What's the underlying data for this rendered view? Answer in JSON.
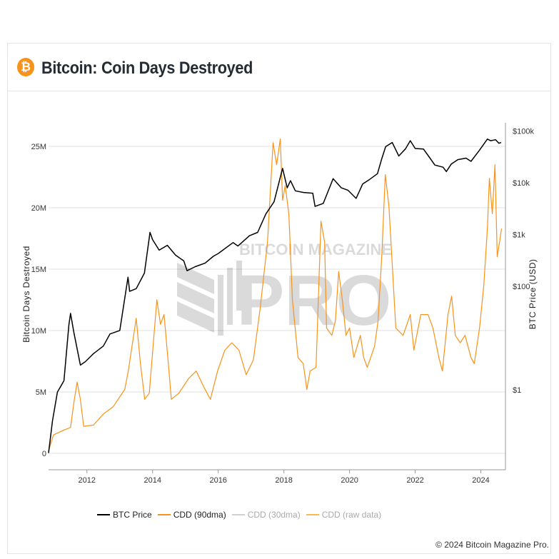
{
  "header": {
    "title": "Bitcoin: Coin Days Destroyed",
    "logo_icon": "bitcoin-logo-icon",
    "logo_glyph": "₿"
  },
  "watermark": {
    "line1": "BITCOIN MAGAZINE",
    "line2": "PRO"
  },
  "copyright": "© 2024 Bitcoin Magazine Pro.",
  "colors": {
    "btc": "#000000",
    "cdd90": "#f7931a",
    "cdd30": "#d0d0d0",
    "raw": "#ffb84d",
    "grid": "#e0e0e0"
  },
  "legend": [
    {
      "label": "BTC Price",
      "color": "#000000",
      "active": true
    },
    {
      "label": "CDD (90dma)",
      "color": "#f7931a",
      "active": true
    },
    {
      "label": "CDD (30dma)",
      "color": "#d0d0d0",
      "active": false
    },
    {
      "label": "CDD (raw data)",
      "color": "#ffb84d",
      "active": false
    }
  ],
  "chart_data": {
    "type": "line",
    "title": "",
    "ylabel": "Bitcoin Days Destroyed",
    "y2label": "BTC Price (USD)",
    "x_ticks": [
      "2012",
      "2014",
      "2016",
      "2018",
      "2020",
      "2022",
      "2024"
    ],
    "y_ticks": [
      "0",
      "5M",
      "10M",
      "15M",
      "20M",
      "25M"
    ],
    "y2_ticks": [
      "$1",
      "$100",
      "$1k",
      "$10k",
      "$100k"
    ],
    "y_scale": "linear",
    "y2_scale": "log",
    "xlim": [
      2010.83,
      2024.75
    ],
    "ylim_millions": [
      -1.34,
      26.45
    ],
    "y2lim": [
      0.0285,
      112000
    ],
    "grid": true,
    "legend_position": "bottom",
    "series": [
      {
        "name": "CDD (90dma)",
        "axis": "left",
        "unit": "M",
        "x": [
          2010.83,
          2010.98,
          2011.3,
          2011.5,
          2011.6,
          2011.7,
          2011.8,
          2011.9,
          2012.2,
          2012.5,
          2012.8,
          2013.15,
          2013.26,
          2013.5,
          2013.63,
          2013.76,
          2013.9,
          2014.13,
          2014.24,
          2014.35,
          2014.48,
          2014.57,
          2014.8,
          2015.1,
          2015.33,
          2015.54,
          2015.76,
          2015.98,
          2016.2,
          2016.41,
          2016.63,
          2016.85,
          2017.07,
          2017.28,
          2017.5,
          2017.67,
          2017.78,
          2017.89,
          2017.96,
          2018.04,
          2018.15,
          2018.26,
          2018.43,
          2018.59,
          2018.7,
          2018.8,
          2018.98,
          2019.13,
          2019.24,
          2019.3,
          2019.46,
          2019.57,
          2019.67,
          2019.78,
          2019.89,
          2020.0,
          2020.13,
          2020.33,
          2020.43,
          2020.54,
          2020.76,
          2020.87,
          2020.98,
          2021.09,
          2021.2,
          2021.3,
          2021.41,
          2021.63,
          2021.85,
          2021.96,
          2022.17,
          2022.39,
          2022.54,
          2022.72,
          2022.83,
          2023.0,
          2023.11,
          2023.22,
          2023.37,
          2023.52,
          2023.7,
          2023.8,
          2023.96,
          2024.09,
          2024.2,
          2024.26,
          2024.35,
          2024.43,
          2024.5,
          2024.57,
          2024.63
        ],
        "y": [
          0.2,
          1.5,
          1.9,
          2.1,
          4.1,
          5.8,
          4.4,
          2.2,
          2.3,
          3.2,
          3.8,
          5.2,
          6.7,
          11.0,
          7.3,
          4.4,
          4.9,
          12.5,
          10.5,
          11.3,
          7.3,
          4.4,
          4.9,
          6.1,
          6.7,
          5.5,
          4.4,
          6.7,
          8.4,
          9.0,
          8.4,
          6.4,
          7.6,
          11.9,
          17.2,
          25.3,
          23.5,
          25.6,
          20.6,
          21.8,
          19.5,
          12.5,
          7.8,
          7.3,
          5.2,
          6.7,
          7.0,
          18.9,
          17.2,
          10.2,
          9.6,
          10.8,
          14.8,
          12.5,
          9.6,
          10.2,
          7.8,
          9.6,
          7.8,
          7.0,
          8.7,
          10.8,
          16.0,
          22.7,
          20.1,
          15.4,
          10.2,
          9.6,
          11.3,
          8.4,
          11.3,
          11.3,
          10.2,
          7.8,
          6.7,
          11.3,
          12.8,
          9.6,
          9.0,
          9.6,
          7.8,
          7.3,
          10.2,
          13.7,
          18.3,
          22.4,
          19.5,
          23.5,
          16.0,
          17.2,
          18.3
        ]
      },
      {
        "name": "BTC Price",
        "axis": "right",
        "unit": "USD",
        "x": [
          2010.83,
          2010.95,
          2011.1,
          2011.3,
          2011.45,
          2011.5,
          2011.6,
          2011.8,
          2011.95,
          2012.2,
          2012.5,
          2012.7,
          2013.0,
          2013.25,
          2013.3,
          2013.5,
          2013.75,
          2013.92,
          2014.0,
          2014.2,
          2014.45,
          2014.7,
          2014.95,
          2015.05,
          2015.3,
          2015.6,
          2015.85,
          2016.0,
          2016.45,
          2016.6,
          2016.95,
          2017.2,
          2017.45,
          2017.7,
          2017.96,
          2018.1,
          2018.2,
          2018.35,
          2018.6,
          2018.88,
          2018.95,
          2019.2,
          2019.5,
          2019.75,
          2019.95,
          2020.2,
          2020.4,
          2020.6,
          2020.85,
          2020.98,
          2021.1,
          2021.3,
          2021.5,
          2021.7,
          2021.85,
          2022.0,
          2022.25,
          2022.45,
          2022.6,
          2022.85,
          2022.95,
          2023.1,
          2023.3,
          2023.55,
          2023.7,
          2023.95,
          2024.2,
          2024.3,
          2024.45,
          2024.55,
          2024.62
        ],
        "y": [
          0.06,
          0.25,
          0.9,
          1.5,
          18,
          30,
          13,
          3,
          3.5,
          5,
          7,
          12,
          14,
          150,
          80,
          90,
          180,
          1100,
          800,
          500,
          620,
          400,
          310,
          200,
          240,
          280,
          380,
          430,
          700,
          600,
          950,
          1100,
          2500,
          4300,
          19000,
          8000,
          11000,
          7000,
          6500,
          6300,
          3500,
          4000,
          12000,
          8000,
          7200,
          5000,
          9500,
          11500,
          15000,
          29000,
          50000,
          60000,
          33000,
          45000,
          65000,
          46000,
          45000,
          30000,
          22000,
          20000,
          16500,
          23000,
          28000,
          30000,
          26000,
          42000,
          70000,
          65000,
          68000,
          58000,
          60000
        ]
      }
    ]
  }
}
